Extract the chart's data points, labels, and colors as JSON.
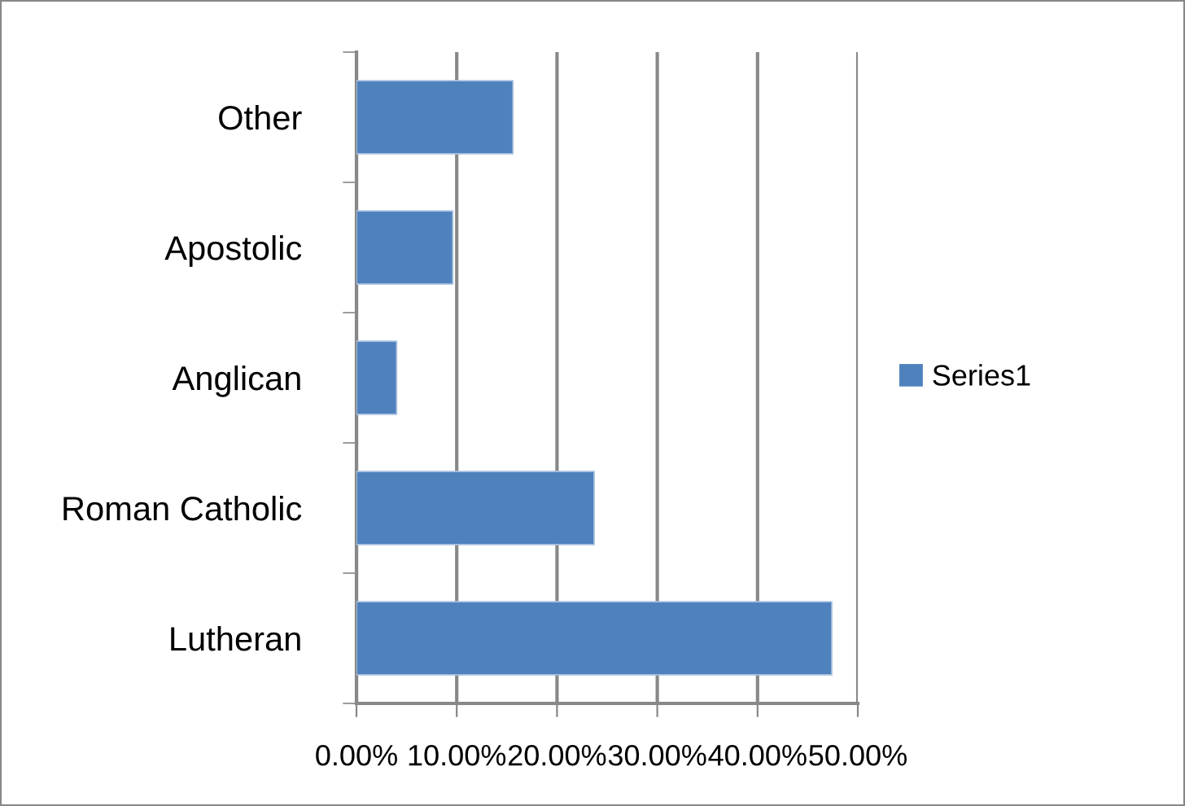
{
  "chart_data": {
    "type": "bar",
    "orientation": "horizontal",
    "categories": [
      "Other",
      "Apostolic",
      "Anglican",
      "Roman Catholic",
      "Lutheran"
    ],
    "series": [
      {
        "name": "Series1",
        "color": "#4f81bd",
        "values": [
          15.6,
          9.6,
          4.0,
          23.7,
          47.4
        ]
      }
    ],
    "xlim": [
      0,
      50
    ],
    "xticks": [
      {
        "value": 0,
        "label": "0.00%"
      },
      {
        "value": 10,
        "label": "10.00%"
      },
      {
        "value": 20,
        "label": "20.00%"
      },
      {
        "value": 30,
        "label": "30.00%"
      },
      {
        "value": 40,
        "label": "40.00%"
      },
      {
        "value": 50,
        "label": "50.00%"
      }
    ],
    "grid": "x",
    "legend": "right"
  }
}
